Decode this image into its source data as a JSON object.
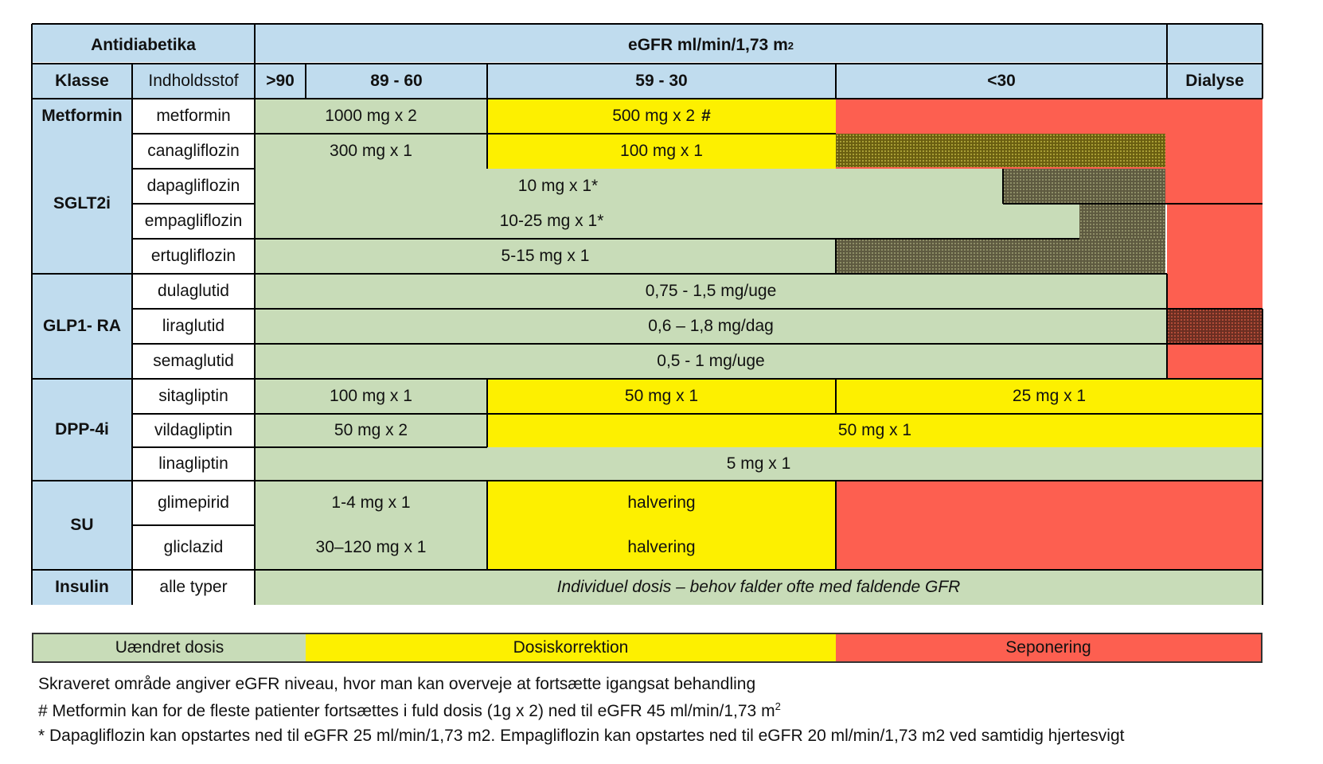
{
  "header": {
    "antidiabetika": "Antidiabetika",
    "egfr_title": "eGFR ml/min/1,73 m",
    "egfr_sup": "2",
    "klasse": "Klasse",
    "indholdsstof": "Indholdsstof",
    "col_gt90": ">90",
    "col_89_60": "89 - 60",
    "col_59_30": "59 - 30",
    "col_lt30": "<30",
    "col_dialyse": "Dialyse"
  },
  "classes": {
    "metformin": "Metformin",
    "sglt2i": "SGLT2i",
    "glp1": "GLP1- RA",
    "dpp4i": "DPP-4i",
    "su": "SU",
    "insulin": "Insulin"
  },
  "drugs": {
    "metformin": {
      "name": "metformin",
      "dose_normal": "1000 mg x 2",
      "dose_reduced": "500 mg x 2",
      "mark": "#"
    },
    "canagliflozin": {
      "name": "canagliflozin",
      "dose_normal": "300 mg x 1",
      "dose_reduced": "100 mg x 1"
    },
    "dapagliflozin": {
      "name": "dapagliflozin",
      "dose": "10 mg x 1*"
    },
    "empagliflozin": {
      "name": "empagliflozin",
      "dose": "10-25 mg x 1*"
    },
    "ertugliflozin": {
      "name": "ertugliflozin",
      "dose": "5-15 mg x 1"
    },
    "dulaglutid": {
      "name": "dulaglutid",
      "dose": "0,75 - 1,5 mg/uge"
    },
    "liraglutid": {
      "name": "liraglutid",
      "dose": "0,6 – 1,8 mg/dag"
    },
    "semaglutid": {
      "name": "semaglutid",
      "dose": "0,5 - 1 mg/uge"
    },
    "sitagliptin": {
      "name": "sitagliptin",
      "dose_normal": "100 mg x 1",
      "dose_mid": "50 mg x 1",
      "dose_low": "25 mg x 1"
    },
    "vildagliptin": {
      "name": "vildagliptin",
      "dose_normal": "50 mg x 2",
      "dose_reduced": "50 mg x 1"
    },
    "linagliptin": {
      "name": "linagliptin",
      "dose": "5 mg x 1"
    },
    "glimepirid": {
      "name": "glimepirid",
      "dose_normal": "1-4 mg x 1",
      "dose_reduced": "halvering"
    },
    "gliclazid": {
      "name": "gliclazid",
      "dose_normal": "30–120 mg x 1",
      "dose_reduced": "halvering"
    },
    "insulin": {
      "name": "alle typer",
      "dose": "Individuel dosis – behov falder ofte med faldende GFR"
    }
  },
  "legend": {
    "green": "Uændret dosis",
    "yellow": "Dosiskorrektion",
    "red": "Seponering"
  },
  "notes": {
    "line1": "Skraveret område angiver eGFR niveau, hvor man kan overveje at fortsætte igangsat behandling",
    "line2": "# Metformin kan for de fleste patienter fortsættes i fuld dosis (1g x 2) ned til eGFR 45 ml/min/1,73 m",
    "line2_sup": "2",
    "line3": "* Dapagliflozin kan opstartes ned til eGFR 25 ml/min/1,73 m2. Empagliflozin kan opstartes ned til eGFR 20 ml/min/1,73 m2 ved samtidig hjertesvigt"
  },
  "colors": {
    "header": "#c0dcee",
    "unchanged": "#c8dcb8",
    "correction": "#fdf000",
    "discontinue": "#fd5f50"
  }
}
